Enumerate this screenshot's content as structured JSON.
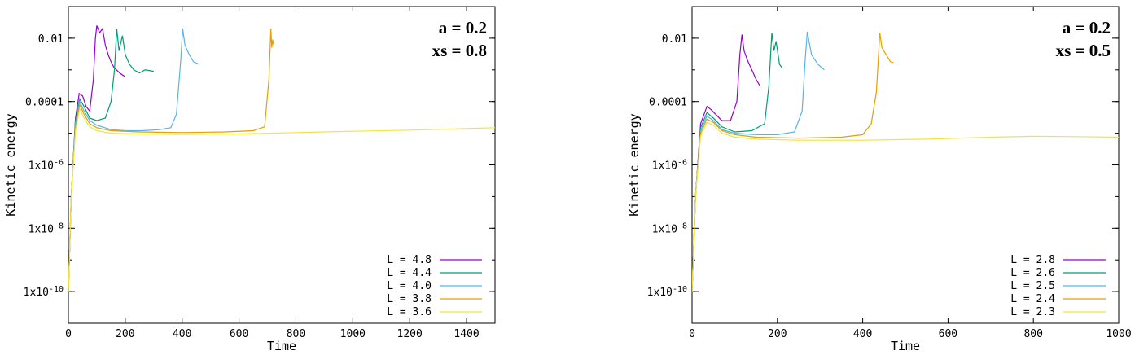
{
  "chart_data": [
    {
      "type": "line",
      "title": "",
      "xlabel": "Time",
      "ylabel": "Kinetic energy",
      "yscale": "log",
      "xlim": [
        0,
        1500
      ],
      "ylim": [
        1e-11,
        0.1
      ],
      "x_ticks": [
        0,
        200,
        400,
        600,
        800,
        1000,
        1200,
        1400
      ],
      "x_tick_labels": [
        "0",
        "200",
        "400",
        "600",
        "800",
        "1000",
        "1200",
        "1400"
      ],
      "y_ticks": [
        1e-10,
        1e-08,
        1e-06,
        0.0001,
        0.01
      ],
      "y_tick_labels": [
        "1x10-10",
        "1x10-8",
        "1x10-6",
        "0.0001",
        "0.01"
      ],
      "y_tick_labels_rich": [
        {
          "base": "1x10",
          "exp": "-10"
        },
        {
          "base": "1x10",
          "exp": "-8"
        },
        {
          "base": "1x10",
          "exp": "-6"
        },
        {
          "base": "0.0001",
          "exp": ""
        },
        {
          "base": "0.01",
          "exp": ""
        }
      ],
      "grid": false,
      "legend_position": "bottom-right",
      "annotation": [
        "a = 0.2",
        "xs = 0.8"
      ],
      "series": [
        {
          "name": "L = 4.8",
          "color": "#9400d3",
          "x": [
            0,
            10,
            25,
            38,
            50,
            62,
            75,
            88,
            95,
            100,
            110,
            120,
            130,
            140,
            150,
            160,
            180,
            200
          ],
          "y": [
            1e-10,
            1e-07,
            3e-05,
            0.00018,
            0.00015,
            7e-05,
            5e-05,
            0.0005,
            0.01,
            0.025,
            0.015,
            0.02,
            0.006,
            0.003,
            0.0018,
            0.0012,
            0.0008,
            0.0006
          ]
        },
        {
          "name": "L = 4.4",
          "color": "#009e73",
          "x": [
            0,
            10,
            25,
            40,
            55,
            75,
            100,
            130,
            150,
            162,
            170,
            178,
            190,
            200,
            215,
            230,
            250,
            270,
            300
          ],
          "y": [
            1e-10,
            1e-07,
            2.5e-05,
            0.00012,
            7e-05,
            3e-05,
            2.5e-05,
            3e-05,
            0.0001,
            0.001,
            0.02,
            0.004,
            0.012,
            0.003,
            0.0015,
            0.001,
            0.0008,
            0.001,
            0.0009
          ]
        },
        {
          "name": "L = 4.0",
          "color": "#56b4e9",
          "x": [
            0,
            10,
            25,
            40,
            55,
            75,
            100,
            150,
            200,
            260,
            320,
            360,
            380,
            395,
            402,
            410,
            425,
            440,
            460
          ],
          "y": [
            1e-10,
            1e-07,
            2e-05,
            0.0001,
            5e-05,
            2.5e-05,
            1.8e-05,
            1.3e-05,
            1.2e-05,
            1.2e-05,
            1.3e-05,
            1.5e-05,
            4e-05,
            0.002,
            0.02,
            0.006,
            0.003,
            0.0018,
            0.0015
          ]
        },
        {
          "name": "L = 3.8",
          "color": "#e69f00",
          "x": [
            0,
            10,
            25,
            40,
            55,
            75,
            100,
            150,
            250,
            400,
            550,
            650,
            690,
            705,
            712,
            715,
            718,
            722
          ],
          "y": [
            1e-10,
            1e-07,
            1.5e-05,
            8e-05,
            4e-05,
            2e-05,
            1.5e-05,
            1.2e-05,
            1.1e-05,
            1.05e-05,
            1.1e-05,
            1.2e-05,
            1.6e-05,
            0.0005,
            0.02,
            0.005,
            0.009,
            0.006
          ]
        },
        {
          "name": "L = 3.6",
          "color": "#f0e442",
          "x": [
            0,
            10,
            25,
            40,
            55,
            75,
            100,
            150,
            250,
            400,
            600,
            800,
            1000,
            1200,
            1400,
            1500
          ],
          "y": [
            1e-10,
            1e-07,
            1.2e-05,
            6e-05,
            3e-05,
            1.6e-05,
            1.2e-05,
            1e-05,
            9.5e-06,
            9.2e-06,
            9.5e-06,
            1.05e-05,
            1.15e-05,
            1.25e-05,
            1.4e-05,
            1.5e-05
          ]
        }
      ]
    },
    {
      "type": "line",
      "title": "",
      "xlabel": "Time",
      "ylabel": "Kinetic energy",
      "yscale": "log",
      "xlim": [
        0,
        1000
      ],
      "ylim": [
        1e-11,
        0.1
      ],
      "x_ticks": [
        0,
        200,
        400,
        600,
        800,
        1000
      ],
      "x_tick_labels": [
        "0",
        "200",
        "400",
        "600",
        "800",
        "1000"
      ],
      "y_ticks": [
        1e-10,
        1e-08,
        1e-06,
        0.0001,
        0.01
      ],
      "y_tick_labels": [
        "1x10-10",
        "1x10-8",
        "1x10-6",
        "0.0001",
        "0.01"
      ],
      "y_tick_labels_rich": [
        {
          "base": "1x10",
          "exp": "-10"
        },
        {
          "base": "1x10",
          "exp": "-8"
        },
        {
          "base": "1x10",
          "exp": "-6"
        },
        {
          "base": "0.0001",
          "exp": ""
        },
        {
          "base": "0.01",
          "exp": ""
        }
      ],
      "grid": false,
      "legend_position": "bottom-right",
      "annotation": [
        "a = 0.2",
        "xs = 0.5"
      ],
      "series": [
        {
          "name": "L = 2.8",
          "color": "#9400d3",
          "x": [
            0,
            8,
            20,
            35,
            45,
            55,
            70,
            90,
            105,
            112,
            117,
            122,
            130,
            140,
            150,
            160
          ],
          "y": [
            1e-10,
            1e-07,
            2e-05,
            7e-05,
            5.5e-05,
            4e-05,
            2.5e-05,
            2.5e-05,
            0.0001,
            0.003,
            0.013,
            0.004,
            0.002,
            0.001,
            0.0005,
            0.0003
          ]
        },
        {
          "name": "L = 2.6",
          "color": "#009e73",
          "x": [
            0,
            8,
            20,
            35,
            50,
            70,
            100,
            140,
            170,
            180,
            187,
            192,
            197,
            205,
            212
          ],
          "y": [
            1e-10,
            1e-07,
            1.5e-05,
            4.5e-05,
            3e-05,
            1.6e-05,
            1.1e-05,
            1.2e-05,
            2e-05,
            0.0003,
            0.015,
            0.004,
            0.008,
            0.0015,
            0.0011
          ]
        },
        {
          "name": "L = 2.5",
          "color": "#56b4e9",
          "x": [
            0,
            8,
            20,
            35,
            50,
            70,
            100,
            150,
            200,
            240,
            258,
            265,
            270,
            280,
            295,
            310
          ],
          "y": [
            1e-10,
            1e-07,
            1.2e-05,
            3.5e-05,
            2.5e-05,
            1.3e-05,
            1e-05,
            9e-06,
            9e-06,
            1.1e-05,
            5e-05,
            0.002,
            0.016,
            0.003,
            0.0015,
            0.001
          ]
        },
        {
          "name": "L = 2.4",
          "color": "#e69f00",
          "x": [
            0,
            8,
            20,
            35,
            50,
            70,
            100,
            150,
            250,
            350,
            400,
            420,
            432,
            440,
            445,
            455,
            465,
            472
          ],
          "y": [
            1e-10,
            1e-07,
            1e-05,
            2.8e-05,
            2.2e-05,
            1.2e-05,
            9e-06,
            7.5e-06,
            7e-06,
            7.5e-06,
            9e-06,
            2e-05,
            0.0002,
            0.015,
            0.005,
            0.003,
            0.0018,
            0.0017
          ]
        },
        {
          "name": "L = 2.3",
          "color": "#f0e442",
          "x": [
            0,
            8,
            20,
            35,
            50,
            70,
            100,
            150,
            250,
            400,
            550,
            700,
            800,
            900,
            1000
          ],
          "y": [
            1e-10,
            1e-07,
            8e-06,
            2.2e-05,
            1.8e-05,
            1e-05,
            7.5e-06,
            6.5e-06,
            6e-06,
            6e-06,
            6.5e-06,
            7.5e-06,
            8e-06,
            7.8e-06,
            7.5e-06
          ]
        }
      ]
    }
  ]
}
